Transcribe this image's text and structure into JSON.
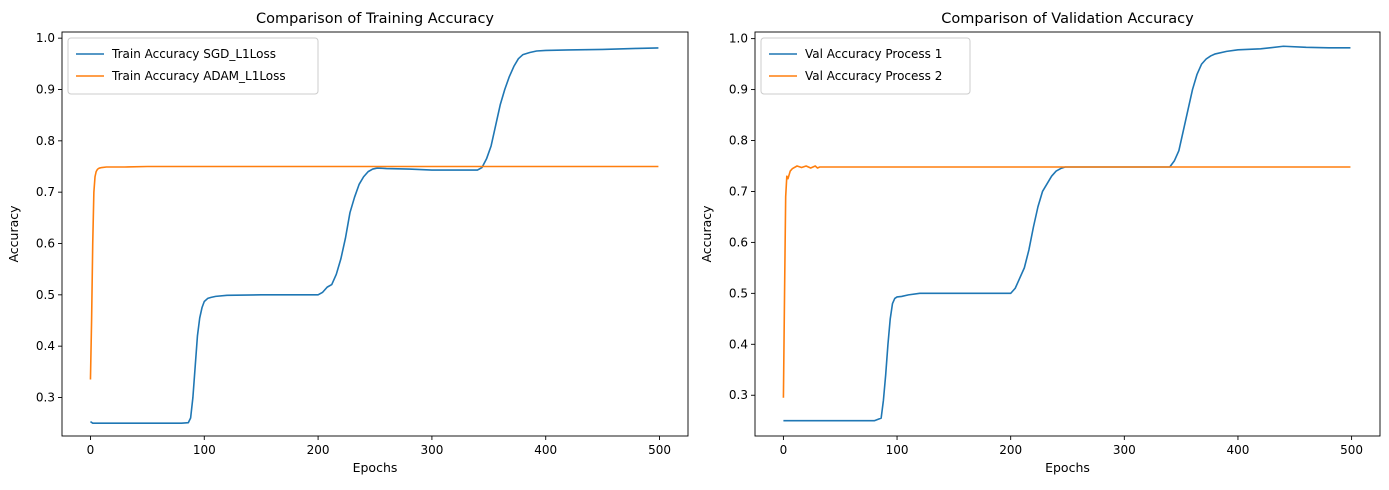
{
  "figure": {
    "background": "#ffffff"
  },
  "chart_data": [
    {
      "type": "line",
      "title": "Comparison of Training Accuracy",
      "xlabel": "Epochs",
      "ylabel": "Accuracy",
      "xlim": [
        -25,
        525
      ],
      "ylim": [
        0.225,
        1.012
      ],
      "xticks": [
        0,
        100,
        200,
        300,
        400,
        500
      ],
      "yticks": [
        0.3,
        0.4,
        0.5,
        0.6,
        0.7,
        0.8,
        0.9,
        1.0
      ],
      "ytick_labels": [
        "0.3",
        "0.4",
        "0.5",
        "0.6",
        "0.7",
        "0.8",
        "0.9",
        "1.0"
      ],
      "grid": false,
      "legend": "upper-left",
      "series": [
        {
          "name": "Train Accuracy SGD_L1Loss",
          "color": "#1f77b4",
          "x": [
            0,
            2,
            10,
            50,
            80,
            86,
            88,
            90,
            92,
            94,
            96,
            98,
            100,
            103,
            106,
            110,
            120,
            150,
            180,
            200,
            204,
            208,
            212,
            216,
            220,
            224,
            228,
            232,
            236,
            240,
            244,
            248,
            252,
            260,
            280,
            300,
            320,
            340,
            344,
            348,
            352,
            356,
            360,
            364,
            368,
            372,
            376,
            380,
            386,
            392,
            400,
            420,
            450,
            480,
            499
          ],
          "y": [
            0.253,
            0.25,
            0.25,
            0.25,
            0.25,
            0.251,
            0.26,
            0.3,
            0.36,
            0.42,
            0.455,
            0.475,
            0.487,
            0.493,
            0.495,
            0.497,
            0.499,
            0.5,
            0.5,
            0.5,
            0.505,
            0.515,
            0.52,
            0.54,
            0.57,
            0.61,
            0.66,
            0.69,
            0.715,
            0.73,
            0.74,
            0.745,
            0.747,
            0.746,
            0.745,
            0.743,
            0.743,
            0.743,
            0.748,
            0.765,
            0.79,
            0.83,
            0.87,
            0.9,
            0.925,
            0.945,
            0.96,
            0.968,
            0.972,
            0.975,
            0.976,
            0.977,
            0.978,
            0.98,
            0.981
          ]
        },
        {
          "name": "Train Accuracy ADAM_L1Loss",
          "color": "#ff7f0e",
          "x": [
            0,
            1,
            2,
            3,
            4,
            5,
            6,
            7,
            8,
            10,
            14,
            20,
            30,
            50,
            100,
            200,
            300,
            400,
            499
          ],
          "y": [
            0.335,
            0.45,
            0.6,
            0.7,
            0.73,
            0.74,
            0.744,
            0.746,
            0.747,
            0.748,
            0.749,
            0.749,
            0.749,
            0.75,
            0.75,
            0.75,
            0.75,
            0.75,
            0.75
          ]
        }
      ]
    },
    {
      "type": "line",
      "title": "Comparison of Validation Accuracy",
      "xlabel": "Epochs",
      "ylabel": "Accuracy",
      "xlim": [
        -25,
        525
      ],
      "ylim": [
        0.22,
        1.013
      ],
      "xticks": [
        0,
        100,
        200,
        300,
        400,
        500
      ],
      "yticks": [
        0.3,
        0.4,
        0.5,
        0.6,
        0.7,
        0.8,
        0.9,
        1.0
      ],
      "ytick_labels": [
        "0.3",
        "0.4",
        "0.5",
        "0.6",
        "0.7",
        "0.8",
        "0.9",
        "1.0"
      ],
      "grid": false,
      "legend": "upper-left",
      "series": [
        {
          "name": "Val Accuracy Process 1",
          "color": "#1f77b4",
          "x": [
            0,
            10,
            50,
            80,
            86,
            88,
            90,
            92,
            94,
            96,
            98,
            100,
            104,
            110,
            120,
            150,
            180,
            200,
            204,
            208,
            212,
            216,
            220,
            224,
            228,
            232,
            236,
            240,
            244,
            248,
            252,
            260,
            300,
            340,
            344,
            348,
            352,
            356,
            360,
            364,
            368,
            372,
            376,
            380,
            390,
            400,
            420,
            440,
            460,
            480,
            499
          ],
          "y": [
            0.25,
            0.25,
            0.25,
            0.25,
            0.255,
            0.29,
            0.34,
            0.4,
            0.45,
            0.48,
            0.49,
            0.493,
            0.494,
            0.497,
            0.5,
            0.5,
            0.5,
            0.5,
            0.51,
            0.53,
            0.55,
            0.585,
            0.63,
            0.67,
            0.7,
            0.715,
            0.73,
            0.74,
            0.745,
            0.748,
            0.748,
            0.748,
            0.748,
            0.748,
            0.76,
            0.78,
            0.82,
            0.86,
            0.9,
            0.93,
            0.95,
            0.96,
            0.966,
            0.97,
            0.975,
            0.978,
            0.98,
            0.985,
            0.983,
            0.982,
            0.982
          ]
        },
        {
          "name": "Val Accuracy Process 2",
          "color": "#ff7f0e",
          "x": [
            0,
            1,
            2,
            3,
            4,
            6,
            8,
            12,
            16,
            20,
            24,
            28,
            30,
            32,
            40,
            100,
            200,
            300,
            400,
            499
          ],
          "y": [
            0.295,
            0.5,
            0.69,
            0.73,
            0.725,
            0.74,
            0.745,
            0.75,
            0.747,
            0.75,
            0.746,
            0.75,
            0.746,
            0.748,
            0.748,
            0.748,
            0.748,
            0.748,
            0.748,
            0.748
          ]
        }
      ]
    }
  ]
}
